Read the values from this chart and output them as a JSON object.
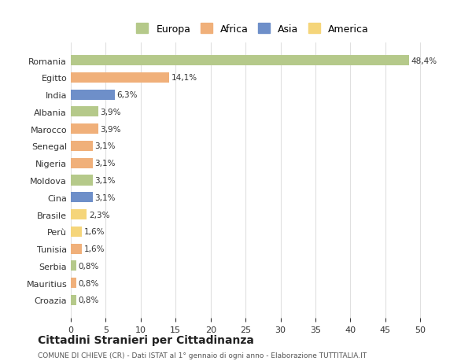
{
  "countries": [
    "Romania",
    "Egitto",
    "India",
    "Albania",
    "Marocco",
    "Senegal",
    "Nigeria",
    "Moldova",
    "Cina",
    "Brasile",
    "Perù",
    "Tunisia",
    "Serbia",
    "Mauritius",
    "Croazia"
  ],
  "values": [
    48.4,
    14.1,
    6.3,
    3.9,
    3.9,
    3.1,
    3.1,
    3.1,
    3.1,
    2.3,
    1.6,
    1.6,
    0.8,
    0.8,
    0.8
  ],
  "labels": [
    "48,4%",
    "14,1%",
    "6,3%",
    "3,9%",
    "3,9%",
    "3,1%",
    "3,1%",
    "3,1%",
    "3,1%",
    "2,3%",
    "1,6%",
    "1,6%",
    "0,8%",
    "0,8%",
    "0,8%"
  ],
  "colors": [
    "#b5c98a",
    "#f0b07a",
    "#6e8fc9",
    "#b5c98a",
    "#f0b07a",
    "#f0b07a",
    "#f0b07a",
    "#b5c98a",
    "#6e8fc9",
    "#f5d57a",
    "#f5d57a",
    "#f0b07a",
    "#b5c98a",
    "#f0b07a",
    "#b5c98a"
  ],
  "legend_labels": [
    "Europa",
    "Africa",
    "Asia",
    "America"
  ],
  "legend_colors": [
    "#b5c98a",
    "#f0b07a",
    "#6e8fc9",
    "#f5d57a"
  ],
  "title": "Cittadini Stranieri per Cittadinanza",
  "subtitle": "COMUNE DI CHIEVE (CR) - Dati ISTAT al 1° gennaio di ogni anno - Elaborazione TUTTITALIA.IT",
  "xlim": [
    0,
    52
  ],
  "xticks": [
    0,
    5,
    10,
    15,
    20,
    25,
    30,
    35,
    40,
    45,
    50
  ],
  "bg_color": "#ffffff",
  "grid_color": "#e0e0e0"
}
